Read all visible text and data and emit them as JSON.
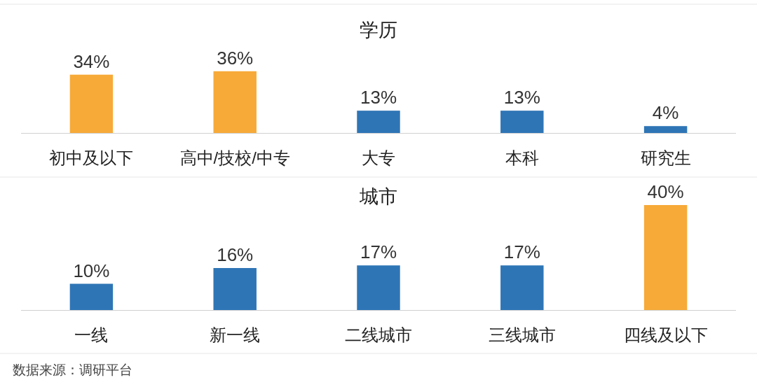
{
  "chart_data": [
    {
      "type": "bar",
      "title": "学历",
      "categories": [
        "初中及以下",
        "高中/技校/中专",
        "大专",
        "本科",
        "研究生"
      ],
      "values": [
        34,
        36,
        13,
        13,
        4
      ],
      "colors": [
        "#f7aa38",
        "#f7aa38",
        "#2e75b6",
        "#2e75b6",
        "#2e75b6"
      ],
      "value_labels": [
        "34%",
        "36%",
        "13%",
        "13%",
        "4%"
      ]
    },
    {
      "type": "bar",
      "title": "城市",
      "categories": [
        "一线",
        "新一线",
        "二线城市",
        "三线城市",
        "四线及以下"
      ],
      "values": [
        10,
        16,
        17,
        17,
        40
      ],
      "colors": [
        "#2e75b6",
        "#2e75b6",
        "#2e75b6",
        "#2e75b6",
        "#f7aa38"
      ],
      "value_labels": [
        "10%",
        "16%",
        "17%",
        "17%",
        "40%"
      ],
      "annotations": [
        "数据来源：调研平台"
      ]
    }
  ]
}
